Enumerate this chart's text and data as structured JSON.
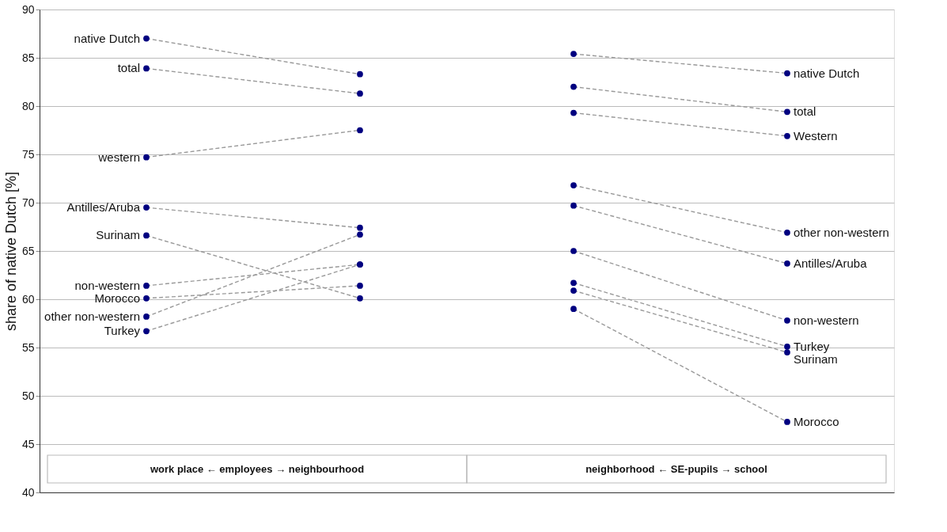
{
  "chart_data": {
    "type": "line",
    "ylabel": "share of native Dutch  [%]",
    "categories": [
      null,
      null,
      null,
      null
    ],
    "ylim": [
      40,
      90
    ],
    "yticks": [
      40,
      45,
      50,
      55,
      60,
      65,
      70,
      75,
      80,
      85,
      90
    ],
    "grid": "y",
    "legend": false,
    "tick_labels": "y",
    "marker": "circle",
    "line_style": "dashed",
    "annotations": [
      "work place ← employees → neighbourhood",
      "neighborhood ← SE-pupils → school"
    ],
    "series": [
      {
        "name": "native Dutch",
        "color": "#999999",
        "values": [
          87.0,
          83.3,
          null,
          null
        ]
      },
      {
        "name": "total",
        "color": "#999999",
        "values": [
          83.9,
          81.3,
          null,
          null
        ]
      },
      {
        "name": "western",
        "color": "#999999",
        "values": [
          74.7,
          77.5,
          null,
          null
        ]
      },
      {
        "name": "Antilles/Aruba",
        "color": "#999999",
        "values": [
          69.5,
          67.4,
          null,
          null
        ]
      },
      {
        "name": "Surinam",
        "color": "#999999",
        "values": [
          66.6,
          60.1,
          null,
          null
        ]
      },
      {
        "name": "non-western",
        "color": "#999999",
        "values": [
          61.4,
          63.6,
          null,
          null
        ]
      },
      {
        "name": "Morocco",
        "color": "#999999",
        "values": [
          60.1,
          61.4,
          null,
          null
        ]
      },
      {
        "name": "other non-western",
        "color": "#999999",
        "values": [
          58.2,
          66.7,
          null,
          null
        ]
      },
      {
        "name": "Turkey",
        "color": "#999999",
        "values": [
          56.7,
          63.6,
          null,
          null
        ]
      },
      {
        "name": "native Dutch",
        "color": "#999999",
        "values": [
          null,
          null,
          85.4,
          83.4
        ]
      },
      {
        "name": "total",
        "color": "#999999",
        "values": [
          null,
          null,
          82.0,
          79.4
        ]
      },
      {
        "name": "Western",
        "color": "#999999",
        "values": [
          null,
          null,
          79.3,
          76.9
        ]
      },
      {
        "name": "other non-western",
        "color": "#999999",
        "values": [
          null,
          null,
          71.8,
          66.9
        ]
      },
      {
        "name": "Antilles/Aruba",
        "color": "#999999",
        "values": [
          null,
          null,
          69.7,
          63.7
        ]
      },
      {
        "name": "non-western",
        "color": "#999999",
        "values": [
          null,
          null,
          65.0,
          57.8
        ]
      },
      {
        "name": "Turkey",
        "color": "#999999",
        "values": [
          null,
          null,
          61.7,
          55.1
        ]
      },
      {
        "name": "Surinam",
        "color": "#999999",
        "values": [
          null,
          null,
          60.9,
          54.5
        ]
      },
      {
        "name": "Morocco",
        "color": "#999999",
        "values": [
          null,
          null,
          59.0,
          47.3
        ]
      }
    ]
  }
}
